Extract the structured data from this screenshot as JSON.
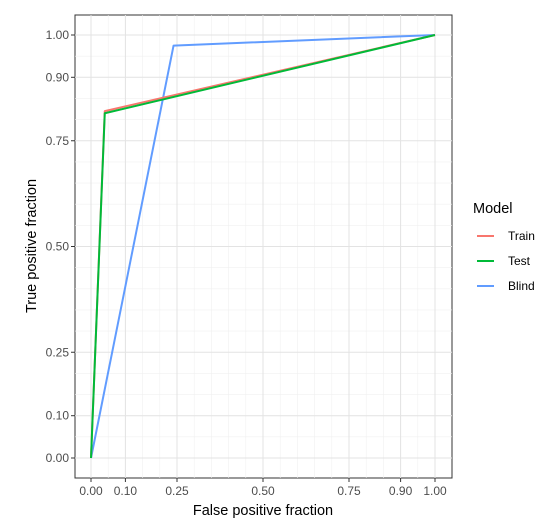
{
  "chart_data": {
    "type": "line",
    "xlabel": "False positive fraction",
    "ylabel": "True positive fraction",
    "xlim": [
      0,
      1
    ],
    "ylim": [
      0,
      1
    ],
    "x_ticks": [
      0.0,
      0.1,
      0.25,
      0.5,
      0.75,
      0.9,
      1.0
    ],
    "x_tick_labels": [
      "0.00",
      "0.10",
      "0.25",
      "0.50",
      "0.75",
      "0.90",
      "1.00"
    ],
    "y_ticks": [
      0.0,
      0.1,
      0.25,
      0.5,
      0.75,
      0.9,
      1.0
    ],
    "y_tick_labels": [
      "0.00",
      "0.10",
      "0.25",
      "0.50",
      "0.75",
      "0.90",
      "1.00"
    ],
    "grid": true,
    "legend": {
      "title": "Model",
      "position": "right"
    },
    "series": [
      {
        "name": "Train",
        "color": "#F8766D",
        "x": [
          0.0,
          0.04,
          1.0
        ],
        "y": [
          0.0,
          0.82,
          1.0
        ]
      },
      {
        "name": "Test",
        "color": "#00BA38",
        "x": [
          0.0,
          0.04,
          1.0
        ],
        "y": [
          0.0,
          0.815,
          1.0
        ]
      },
      {
        "name": "Blind",
        "color": "#619CFF",
        "x": [
          0.0,
          0.24,
          1.0
        ],
        "y": [
          0.0,
          0.975,
          1.0
        ]
      }
    ]
  }
}
